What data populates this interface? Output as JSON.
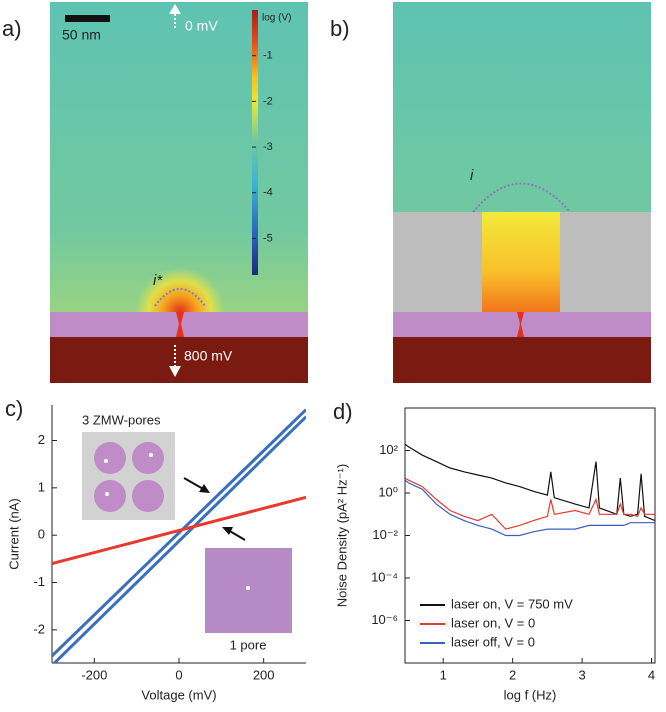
{
  "panels": [
    {
      "label": "a)",
      "scale_bar": "50 nm",
      "top_potential": "0 mV",
      "bottom_potential": "800 mV",
      "region": "i*",
      "colorbar": {
        "label": "log (V)",
        "lim": [
          -5.8,
          0
        ],
        "ticks": [
          -1,
          -2,
          -3,
          -4,
          -5
        ]
      }
    },
    {
      "label": "b)",
      "region": "i"
    }
  ],
  "chart_data": [
    {
      "type": "line",
      "label": "c)",
      "xlabel": "Voltage (mV)",
      "ylabel": "Current (nA)",
      "x": [
        -300,
        300
      ],
      "xlim": [
        -300,
        300
      ],
      "xticks": [
        -200,
        0,
        200
      ],
      "ylim": [
        -2.7,
        2.75
      ],
      "yticks": [
        -2,
        -1,
        0,
        1,
        2
      ],
      "series": [
        {
          "name": "3 ZMW-pores",
          "color": "#3a6fc0",
          "values": [
            -2.55,
            2.65
          ]
        },
        {
          "color": "#3a6fc0",
          "values": [
            -2.75,
            2.5
          ]
        },
        {
          "name": "1 pore",
          "color": "#e8392c",
          "values": [
            -0.6,
            0.8
          ]
        }
      ]
    },
    {
      "type": "line",
      "label": "d)",
      "xlabel": "log f (Hz)",
      "ylabel": "Noise Density (pA² Hz⁻¹)",
      "yscale": "log",
      "legend": "lower right",
      "x": [
        0.45,
        0.5,
        0.7,
        0.9,
        1.1,
        1.3,
        1.5,
        1.7,
        1.9,
        2.1,
        2.3,
        2.5,
        2.55,
        2.6,
        2.9,
        3.1,
        3.2,
        3.25,
        3.5,
        3.55,
        3.6,
        3.7,
        3.8,
        3.85,
        3.9,
        4.05
      ],
      "xlim": [
        0.45,
        4.05
      ],
      "xticks": [
        1,
        2,
        3,
        4
      ],
      "ylim": [
        1e-08,
        10000
      ],
      "yticks": [
        {
          "value": 100,
          "label": "10²"
        },
        {
          "value": 1,
          "label": "10⁰"
        },
        {
          "value": 0.01,
          "label": "10⁻²"
        },
        {
          "value": 0.0001,
          "label": "10⁻⁴"
        },
        {
          "value": 1e-06,
          "label": "10⁻⁶"
        }
      ],
      "series": [
        {
          "name": "laser on, V = 750 mV",
          "color": "#111111",
          "values": [
            200,
            150,
            60,
            30,
            15,
            10,
            7,
            5,
            3,
            2,
            1.2,
            0.8,
            10,
            0.6,
            0.3,
            0.2,
            30,
            0.2,
            0.1,
            5,
            0.1,
            0.08,
            0.1,
            8,
            0.08,
            0.05
          ]
        },
        {
          "name": "laser on, V = 0",
          "color": "#e8392c",
          "values": [
            5,
            4,
            2,
            0.5,
            0.15,
            0.08,
            0.05,
            0.1,
            0.02,
            0.03,
            0.05,
            0.08,
            0.5,
            0.1,
            0.15,
            0.1,
            0.5,
            0.1,
            0.1,
            0.3,
            0.1,
            0.1,
            0.08,
            0.2,
            0.1,
            0.1
          ]
        },
        {
          "name": "laser off, V = 0",
          "color": "#3a5fc0",
          "values": [
            4,
            3,
            1.5,
            0.3,
            0.1,
            0.05,
            0.03,
            0.02,
            0.01,
            0.01,
            0.015,
            0.02,
            0.02,
            0.02,
            0.02,
            0.03,
            0.03,
            0.03,
            0.03,
            0.03,
            0.03,
            0.04,
            0.04,
            0.04,
            0.04,
            0.04
          ]
        }
      ]
    }
  ]
}
